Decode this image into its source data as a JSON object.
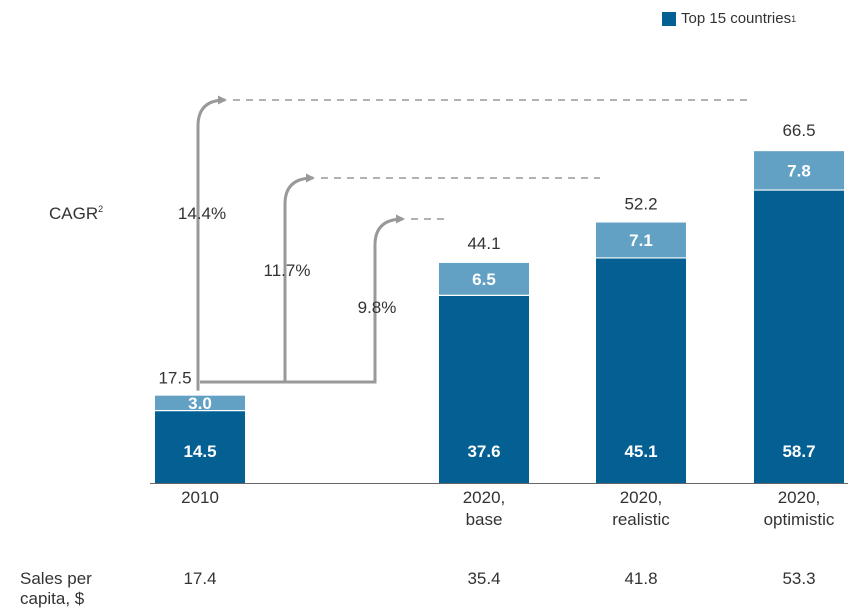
{
  "legend": {
    "label": "Top 15 countries",
    "marker": "1"
  },
  "colors": {
    "dark": "#045f92",
    "light": "#63a1c4",
    "arrow": "#999999",
    "text": "#333333"
  },
  "cagr": {
    "label": "CAGR",
    "marker": "2"
  },
  "sales_per_capita": {
    "label_line1": "Sales per",
    "label_line2": "capita, $",
    "values": [
      "17.4",
      "35.4",
      "41.8",
      "53.3"
    ]
  },
  "chart_data": {
    "type": "bar",
    "stacked": true,
    "categories": [
      {
        "line1": "2010",
        "line2": ""
      },
      {
        "line1": "2020,",
        "line2": "base"
      },
      {
        "line1": "2020,",
        "line2": "realistic"
      },
      {
        "line1": "2020,",
        "line2": "optimistic"
      }
    ],
    "series": [
      {
        "name": "Top 15 countries",
        "values": [
          14.5,
          37.6,
          45.1,
          58.7
        ]
      },
      {
        "values": [
          3.0,
          6.5,
          7.1,
          7.8
        ]
      }
    ],
    "segment_labels": [
      [
        "14.5",
        "3.0"
      ],
      [
        "37.6",
        "6.5"
      ],
      [
        "45.1",
        "7.1"
      ],
      [
        "58.7",
        "7.8"
      ]
    ],
    "totals": [
      "17.5",
      "44.1",
      "52.2",
      "66.5"
    ],
    "growth_arrows": [
      {
        "label": "9.8%",
        "target": 1
      },
      {
        "label": "11.7%",
        "target": 2
      },
      {
        "label": "14.4%",
        "target": 3
      }
    ],
    "ylim": [
      0,
      70
    ],
    "grid": false,
    "legend_position": "top-right"
  }
}
